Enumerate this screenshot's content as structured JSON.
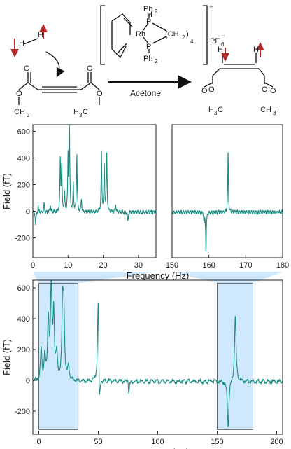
{
  "scheme": {
    "reactant_h_left": "H",
    "reactant_h_right": "H",
    "left_ester_o_top": "O",
    "left_ester_o_bottom": "O",
    "right_ester_o_top": "O",
    "right_ester_o_bottom": "O",
    "left_ch3": "CH",
    "left_ch3_sub": "3",
    "right_ch3": "H",
    "right_ch3_c": "C",
    "right_ch3_sub": "3",
    "catalyst_rh": "Rh",
    "catalyst_p_top": "P",
    "catalyst_p_bottom": "P",
    "catalyst_ph2_top": "Ph",
    "catalyst_ph2_top_sub": "2",
    "catalyst_ph2_bottom": "Ph",
    "catalyst_ph2_bottom_sub": "2",
    "catalyst_h": "H",
    "catalyst_ch2": "(CH",
    "catalyst_ch2_sub": "2",
    "catalyst_ch2_close": ")",
    "catalyst_sub4": "4",
    "catalyst_charge": "+",
    "counterion": "PF",
    "counterion_sub": "6",
    "counterion_charge": "−",
    "solvent": "Acetone",
    "product_h_left": "H",
    "product_h_right": "H",
    "product_left_o_top": "O",
    "product_left_o_bottom": "O",
    "product_right_o_top": "O",
    "product_right_o_bottom": "O",
    "product_left_ch3": "H",
    "product_left_ch3_c": "C",
    "product_left_ch3_sub": "3",
    "product_right_ch3": "CH",
    "product_right_ch3_sub": "3"
  },
  "colors": {
    "trace": "#1a8c82",
    "highlight": "#cfe8fb",
    "spin_arrow": "#b02a2a",
    "inset_box": "#666666"
  },
  "chart_data": [
    {
      "type": "line",
      "panel": "top-left",
      "xlabel": "Frequency (Hz)",
      "ylabel": "Field (fT)",
      "xlim": [
        0,
        35
      ],
      "ylim": [
        -350,
        650
      ],
      "xticks": [
        0,
        10,
        20,
        30
      ],
      "yticks": [
        -200,
        0,
        200,
        400,
        600
      ],
      "peaks": [
        {
          "x": 0.8,
          "y": -110
        },
        {
          "x": 1.5,
          "y": 40
        },
        {
          "x": 3.2,
          "y": 70
        },
        {
          "x": 5.0,
          "y": 50
        },
        {
          "x": 7.8,
          "y": 390
        },
        {
          "x": 8.2,
          "y": 330
        },
        {
          "x": 9.0,
          "y": 130
        },
        {
          "x": 10.0,
          "y": 400
        },
        {
          "x": 10.4,
          "y": 610
        },
        {
          "x": 11.5,
          "y": 200
        },
        {
          "x": 12.5,
          "y": 430
        },
        {
          "x": 13.8,
          "y": 100
        },
        {
          "x": 19.5,
          "y": 440
        },
        {
          "x": 20.3,
          "y": 350
        },
        {
          "x": 21.0,
          "y": 430
        },
        {
          "x": 23.5,
          "y": 60
        },
        {
          "x": 27.0,
          "y": -70
        }
      ]
    },
    {
      "type": "line",
      "panel": "top-right",
      "xlim": [
        150,
        180
      ],
      "ylim": [
        -350,
        650
      ],
      "xticks": [
        150,
        160,
        170,
        180
      ],
      "peaks": [
        {
          "x": 159.2,
          "y": -300
        },
        {
          "x": 158.7,
          "y": -80
        },
        {
          "x": 165.2,
          "y": 450
        }
      ]
    },
    {
      "type": "line",
      "panel": "bottom",
      "xlabel": "Frequency (Hz)",
      "ylabel": "Field (fT)",
      "xlim": [
        -5,
        205
      ],
      "ylim": [
        -350,
        650
      ],
      "xticks": [
        0,
        50,
        100,
        150,
        200
      ],
      "yticks": [
        -200,
        0,
        200,
        400,
        600
      ],
      "peaks": [
        {
          "x": 2,
          "y": 200
        },
        {
          "x": 5,
          "y": 150
        },
        {
          "x": 8,
          "y": 390
        },
        {
          "x": 10.4,
          "y": 610
        },
        {
          "x": 12.5,
          "y": 430
        },
        {
          "x": 15,
          "y": 160
        },
        {
          "x": 20,
          "y": 440
        },
        {
          "x": 21,
          "y": 430
        },
        {
          "x": 25,
          "y": 100
        },
        {
          "x": 50,
          "y": 650
        },
        {
          "x": 50.8,
          "y": -340
        },
        {
          "x": 75,
          "y": 80
        },
        {
          "x": 75.5,
          "y": -120
        },
        {
          "x": 159.2,
          "y": -300
        },
        {
          "x": 165.2,
          "y": 450
        }
      ],
      "insets": [
        {
          "x_range": [
            0,
            33
          ],
          "y_range": [
            -320,
            630
          ]
        },
        {
          "x_range": [
            150,
            180
          ],
          "y_range": [
            -320,
            630
          ]
        }
      ]
    }
  ]
}
